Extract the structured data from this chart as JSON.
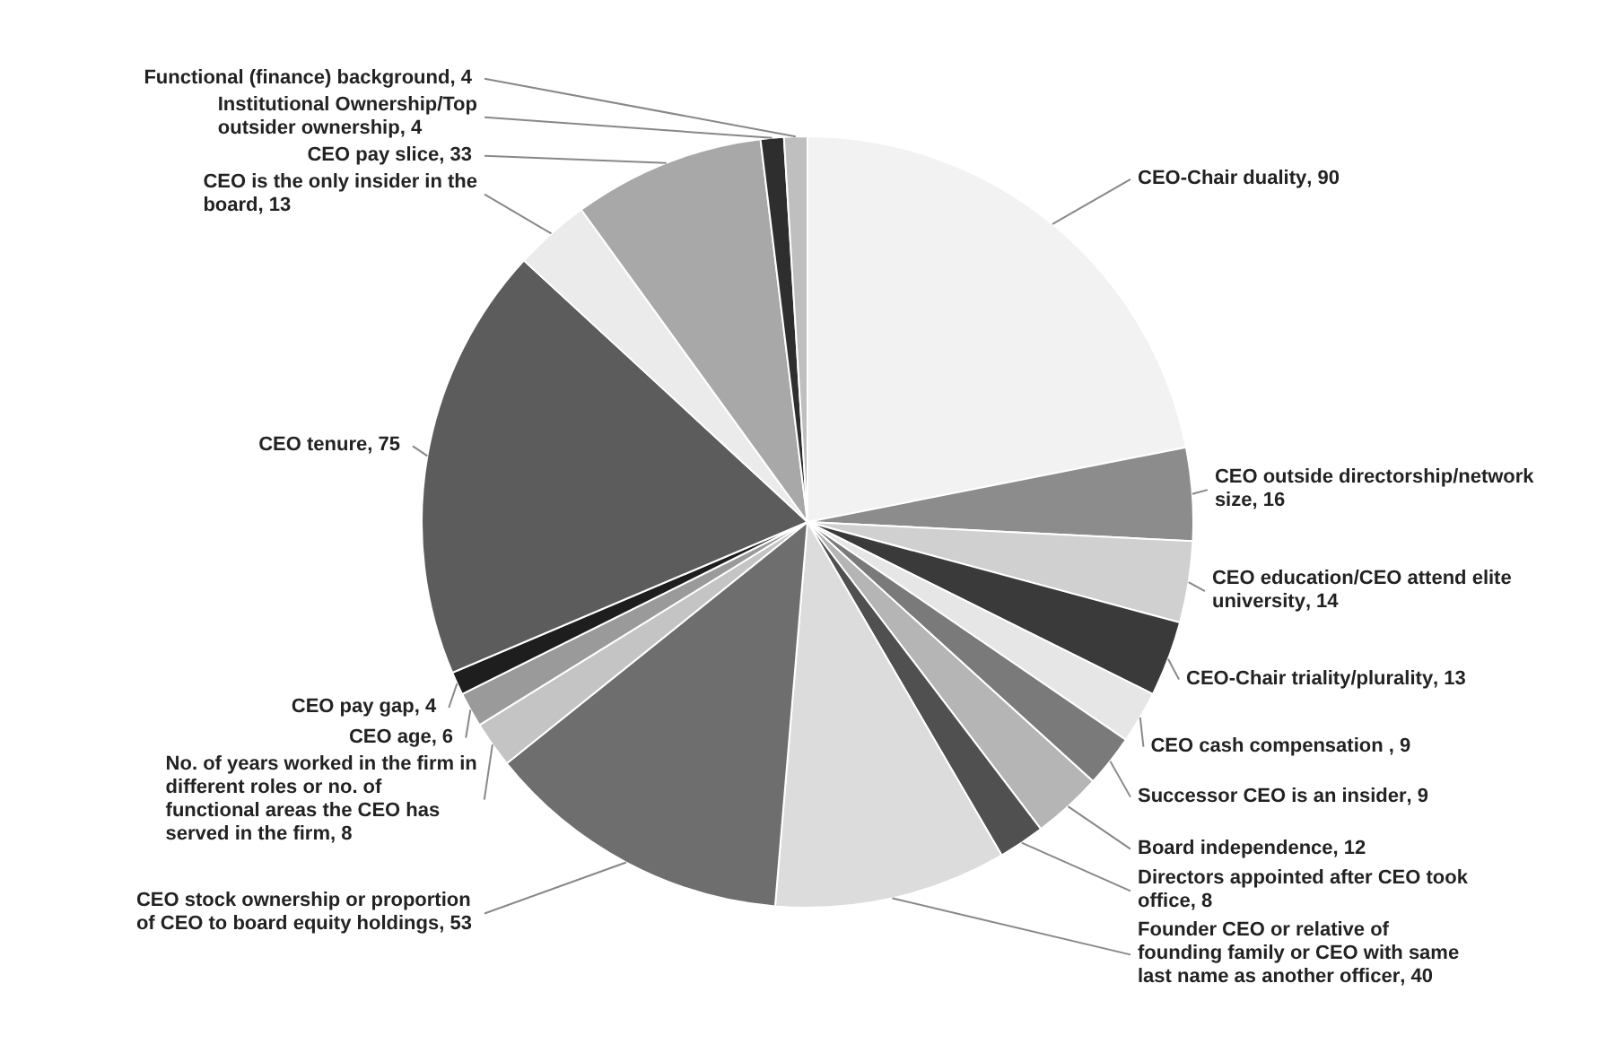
{
  "chart_data": {
    "type": "pie",
    "categories": [
      "CEO-Chair duality",
      "CEO outside directorship/network size",
      "CEO education/CEO attend elite university",
      "CEO-Chair triality/plurality",
      "CEO cash compensation ",
      "Successor CEO is an insider",
      "Board independence",
      "Directors appointed after CEO took office",
      "Founder CEO or relative of founding family or CEO with same last name as another officer",
      "CEO stock ownership or proportion of CEO to board equity holdings",
      "No. of years worked in the firm in different roles or no. of functional areas the CEO has served in the firm",
      "CEO age",
      "CEO pay gap",
      "CEO tenure",
      "CEO is the only insider in the board",
      "CEO pay slice",
      "Institutional Ownership/Top outsider ownership",
      "Functional (finance) background"
    ],
    "values": [
      90,
      16,
      14,
      13,
      9,
      9,
      12,
      8,
      40,
      53,
      8,
      6,
      4,
      75,
      13,
      33,
      4,
      4
    ],
    "colors": [
      "#f2f2f2",
      "#8c8c8c",
      "#d0d0d0",
      "#3a3a3a",
      "#e6e6e6",
      "#7a7a7a",
      "#b5b5b5",
      "#505050",
      "#dcdcdc",
      "#6e6e6e",
      "#c4c4c4",
      "#9a9a9a",
      "#1e1e1e",
      "#5c5c5c",
      "#ebebeb",
      "#a8a8a8",
      "#2e2e2e",
      "#bfbfbf"
    ],
    "value_labels": [
      ", 90",
      ", 16",
      ", 14",
      ", 13",
      ", 9",
      ", 9",
      ", 12",
      ", 8",
      ", 40",
      ", 53",
      ", 8",
      ", 6",
      ", 4",
      ", 75",
      ", 13",
      ", 33",
      ", 4",
      ", 4"
    ]
  }
}
